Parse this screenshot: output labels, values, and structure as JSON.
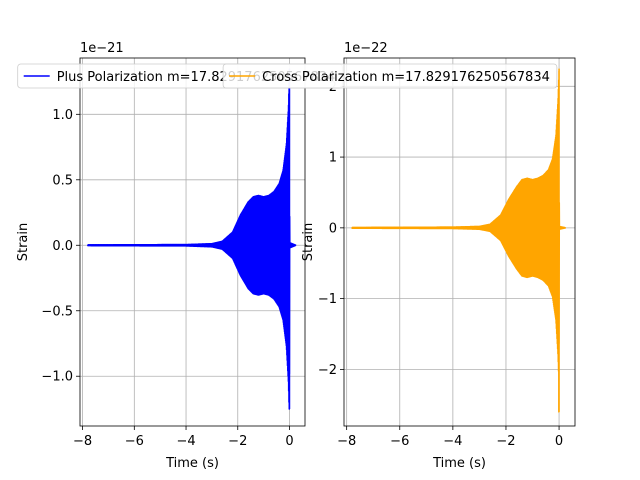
{
  "chart_data": [
    {
      "type": "line",
      "xlabel": "Time (s)",
      "ylabel": "Strain",
      "y_offset_label": "1e−21",
      "xlim": [
        -8.1,
        0.6
      ],
      "ylim": [
        -1.38,
        1.43
      ],
      "x_ticks": [
        -8,
        -6,
        -4,
        -2,
        0
      ],
      "x_tick_labels": [
        "−8",
        "−6",
        "−4",
        "−2",
        "0"
      ],
      "y_ticks": [
        -1.0,
        -0.5,
        0.0,
        0.5,
        1.0
      ],
      "y_tick_labels": [
        "−1.0",
        "−0.5",
        "0.0",
        "0.5",
        "1.0"
      ],
      "grid": true,
      "legend_placement": "top-center",
      "series": [
        {
          "name": "Plus Polarization m=17.829176250567834",
          "color": "#0000ff",
          "x_start": -7.8,
          "x_end": 0.25,
          "envelope": [
            [
              -7.8,
              0.003
            ],
            [
              -4.0,
              0.005
            ],
            [
              -3.0,
              0.012
            ],
            [
              -2.6,
              0.03
            ],
            [
              -2.2,
              0.1
            ],
            [
              -1.9,
              0.23
            ],
            [
              -1.6,
              0.33
            ],
            [
              -1.4,
              0.37
            ],
            [
              -1.2,
              0.38
            ],
            [
              -1.0,
              0.37
            ],
            [
              -0.8,
              0.38
            ],
            [
              -0.6,
              0.41
            ],
            [
              -0.4,
              0.47
            ],
            [
              -0.25,
              0.57
            ],
            [
              -0.12,
              0.77
            ],
            [
              -0.04,
              1.05
            ],
            [
              0.0,
              1.35
            ],
            [
              0.01,
              0.02
            ],
            [
              0.25,
              0.0
            ]
          ],
          "min_tail": -1.25
        }
      ]
    },
    {
      "type": "line",
      "xlabel": "Time (s)",
      "ylabel": "Strain",
      "y_offset_label": "1e−22",
      "xlim": [
        -8.1,
        0.6
      ],
      "ylim": [
        -2.8,
        2.4
      ],
      "x_ticks": [
        -8,
        -6,
        -4,
        -2,
        0
      ],
      "x_tick_labels": [
        "−8",
        "−6",
        "−4",
        "−2",
        "0"
      ],
      "y_ticks": [
        -2,
        -1,
        0,
        1,
        2
      ],
      "y_tick_labels": [
        "−2",
        "−1",
        "0",
        "1",
        "2"
      ],
      "grid": true,
      "legend_placement": "top-center",
      "series": [
        {
          "name": "Cross Polarization m=17.829176250567834",
          "color": "#ffa500",
          "x_start": -7.8,
          "x_end": 0.25,
          "envelope": [
            [
              -7.8,
              0.005
            ],
            [
              -4.0,
              0.01
            ],
            [
              -3.0,
              0.02
            ],
            [
              -2.6,
              0.05
            ],
            [
              -2.2,
              0.18
            ],
            [
              -1.9,
              0.4
            ],
            [
              -1.6,
              0.58
            ],
            [
              -1.4,
              0.68
            ],
            [
              -1.2,
              0.7
            ],
            [
              -1.0,
              0.68
            ],
            [
              -0.8,
              0.7
            ],
            [
              -0.6,
              0.74
            ],
            [
              -0.4,
              0.82
            ],
            [
              -0.25,
              0.97
            ],
            [
              -0.12,
              1.3
            ],
            [
              -0.04,
              1.8
            ],
            [
              0.0,
              2.25
            ],
            [
              0.01,
              0.02
            ],
            [
              0.25,
              0.0
            ]
          ],
          "min_tail": -2.6
        }
      ]
    }
  ]
}
